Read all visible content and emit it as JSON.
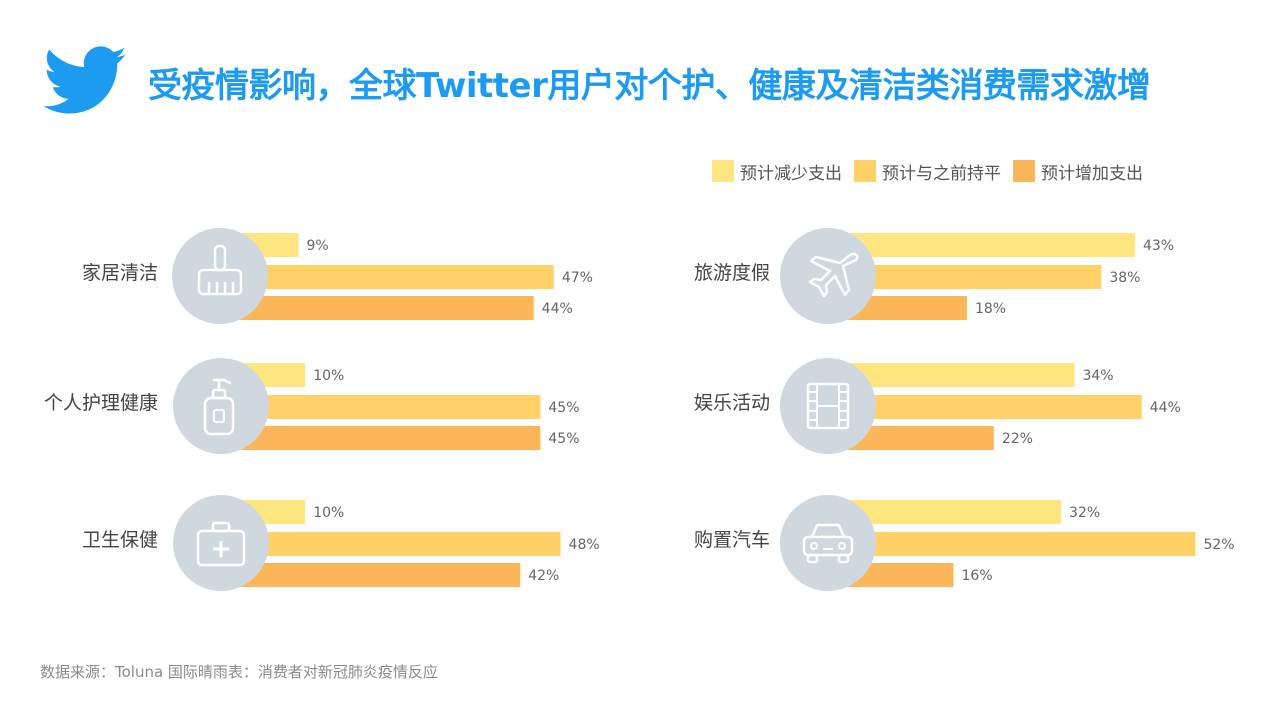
{
  "title": "受疫情影响，全球Twitter用户对个护、健康及清洁类消费需求激增",
  "legend": [
    "预计减少支出",
    "预计与之前持平",
    "预计增加支出"
  ],
  "source": "数据来源：Toluna 国际晴雨表：消费者对新冠肺炎疫情反应",
  "colors": {
    "title": "#1d9bf0",
    "series": [
      "#ffe57f",
      "#ffd166",
      "#fbb65a"
    ],
    "icon_circle": "#cfd8de",
    "icon_stroke": "#ffffff"
  },
  "chart_data": {
    "type": "bar",
    "orientation": "horizontal",
    "categories": [
      "家居清洁",
      "个人护理健康",
      "卫生保健",
      "旅游度假",
      "娱乐活动",
      "购置汽车"
    ],
    "category_icons": [
      "cleaning-brush-icon",
      "lotion-bottle-icon",
      "medical-kit-icon",
      "airplane-icon",
      "film-strip-icon",
      "car-icon"
    ],
    "series": [
      {
        "name": "预计减少支出",
        "values": [
          9,
          10,
          10,
          43,
          34,
          32
        ]
      },
      {
        "name": "预计与之前持平",
        "values": [
          47,
          45,
          48,
          38,
          44,
          52
        ]
      },
      {
        "name": "预计增加支出",
        "values": [
          44,
          45,
          42,
          18,
          22,
          16
        ]
      }
    ],
    "unit": "%",
    "legend_position": "top-right",
    "grid": false
  }
}
